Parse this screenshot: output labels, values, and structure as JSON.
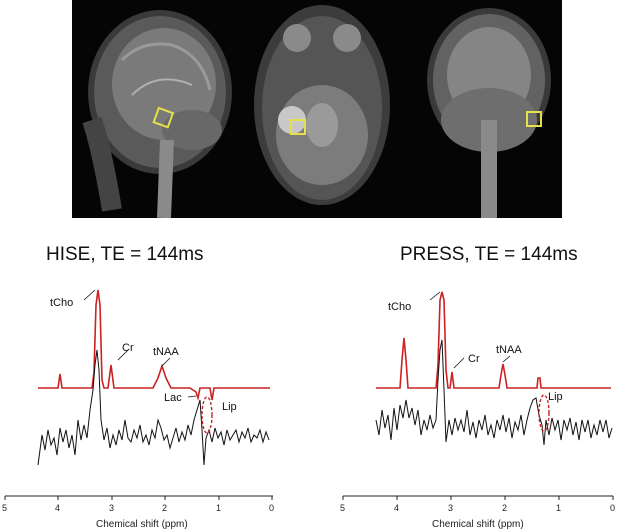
{
  "spectra": [
    {
      "title": "HISE, TE = 144ms",
      "peaks": [
        "tCho",
        "Cr",
        "tNAA",
        "Lac",
        "Lip"
      ],
      "xlabel": "Chemical shift (ppm)",
      "ticks": [
        "5",
        "4",
        "3",
        "2",
        "1",
        "0"
      ]
    },
    {
      "title": "PRESS, TE = 144ms",
      "peaks": [
        "tCho",
        "Cr",
        "tNAA",
        "Lip"
      ],
      "xlabel": "Chemical shift (ppm)",
      "ticks": [
        "5",
        "4",
        "3",
        "2",
        "1",
        "0"
      ]
    }
  ],
  "colors": {
    "fit": "#cc2222",
    "data": "#111111",
    "voxel": "#e8e04a",
    "background": "#050505"
  },
  "mri_views": [
    "sagittal",
    "axial",
    "coronal"
  ]
}
